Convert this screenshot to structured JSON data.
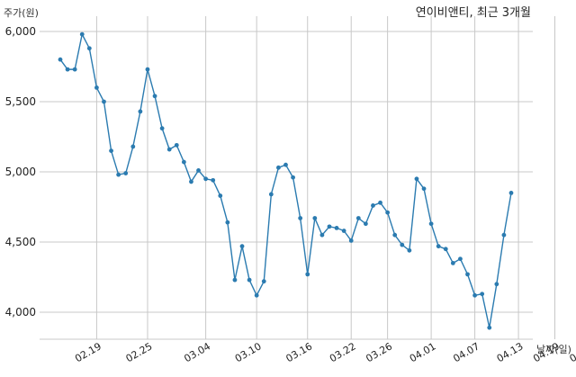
{
  "chart_data": {
    "type": "line",
    "title": "연이비앤티, 최근 3개월",
    "xlabel": "날짜(일)",
    "ylabel": "주가(원)",
    "ylim": [
      3800,
      6100
    ],
    "yticks": [
      4000,
      4500,
      5000,
      5500,
      6000
    ],
    "ytick_labels": [
      "4,000",
      "4,500",
      "5,000",
      "5,500",
      "6,000"
    ],
    "xtick_labels": [
      "02.19",
      "02.25",
      "03.04",
      "03.10",
      "03.16",
      "03.22",
      "03.26",
      "04.01",
      "04.07",
      "04.13",
      "04.19",
      "04.23",
      "04.29",
      "05.06",
      "05.12",
      "21.05.18"
    ],
    "xtick_positions": [
      5,
      12,
      20,
      27,
      34,
      40,
      45,
      51,
      57,
      63,
      68,
      73,
      79,
      86,
      92,
      98
    ],
    "grid": true,
    "color": "#2b7bb0",
    "values": [
      5800,
      5730,
      5730,
      5980,
      5880,
      5600,
      5500,
      5150,
      4980,
      4990,
      5180,
      5430,
      5730,
      5540,
      5310,
      5160,
      5190,
      5070,
      4930,
      5010,
      4950,
      4940,
      4830,
      4640,
      4230,
      4470,
      4230,
      4120,
      4220,
      4840,
      5030,
      5050,
      4960,
      4670,
      4270,
      4670,
      4550,
      4610,
      4600,
      4580,
      4510,
      4670,
      4630,
      4760,
      4780,
      4710,
      4550,
      4480,
      4440,
      4950,
      4880,
      4630,
      4470,
      4450,
      4350,
      4380,
      4270,
      4120,
      4130,
      3890,
      4200,
      4550,
      4850
    ]
  }
}
